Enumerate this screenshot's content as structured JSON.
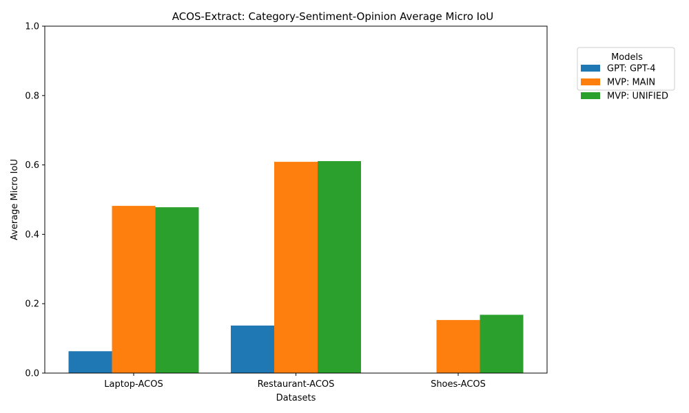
{
  "chart_data": {
    "type": "bar",
    "title": "ACOS-Extract: Category-Sentiment-Opinion Average Micro IoU",
    "xlabel": "Datasets",
    "ylabel": "Average Micro IoU",
    "ylim": [
      0,
      1
    ],
    "yticks": [
      "0.0",
      "0.2",
      "0.4",
      "0.6",
      "0.8",
      "1.0"
    ],
    "categories": [
      "Laptop-ACOS",
      "Restaurant-ACOS",
      "Shoes-ACOS"
    ],
    "series": [
      {
        "name": "GPT: GPT-4",
        "color": "#1f77b4",
        "values": [
          0.063,
          0.137,
          0
        ]
      },
      {
        "name": "MVP: MAIN",
        "color": "#ff7f0e",
        "values": [
          0.482,
          0.609,
          0.153
        ]
      },
      {
        "name": "MVP: UNIFIED",
        "color": "#2ca02c",
        "values": [
          0.478,
          0.611,
          0.168
        ]
      }
    ],
    "legend": {
      "title": "Models",
      "placement": "outside-top-right"
    },
    "grid": false
  }
}
